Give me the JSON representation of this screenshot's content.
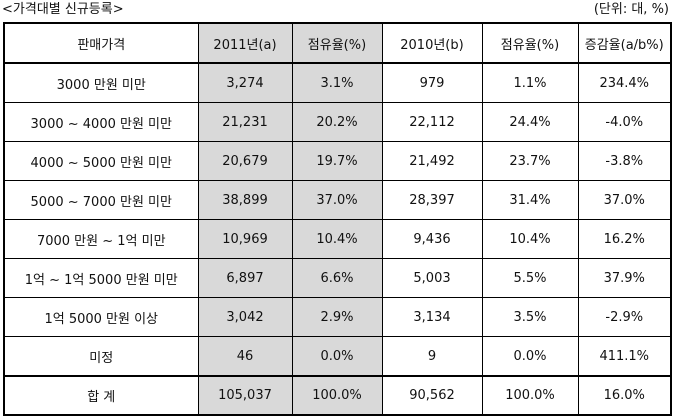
{
  "caption": {
    "title": "<가격대별 신규등록>",
    "unit": "(단위: 대, %)"
  },
  "table": {
    "columns": [
      "판매가격",
      "2011년(a)",
      "점유율(%)",
      "2010년(b)",
      "점유율(%)",
      "증감율(a/b%)"
    ],
    "rows": [
      [
        "3000 만원 미만",
        "3,274",
        "3.1%",
        "979",
        "1.1%",
        "234.4%"
      ],
      [
        "3000 ~ 4000 만원 미만",
        "21,231",
        "20.2%",
        "22,112",
        "24.4%",
        "-4.0%"
      ],
      [
        "4000 ~ 5000 만원 미만",
        "20,679",
        "19.7%",
        "21,492",
        "23.7%",
        "-3.8%"
      ],
      [
        "5000 ~ 7000 만원 미만",
        "38,899",
        "37.0%",
        "28,397",
        "31.4%",
        "37.0%"
      ],
      [
        "7000 만원 ~ 1억 미만",
        "10,969",
        "10.4%",
        "9,436",
        "10.4%",
        "16.2%"
      ],
      [
        "1억 ~ 1억 5000 만원 미만",
        "6,897",
        "6.6%",
        "5,003",
        "5.5%",
        "37.9%"
      ],
      [
        "1억 5000 만원 이상",
        "3,042",
        "2.9%",
        "3,134",
        "3.5%",
        "-2.9%"
      ],
      [
        "미정",
        "46",
        "0.0%",
        "9",
        "0.0%",
        "411.1%"
      ]
    ],
    "total": [
      "합 계",
      "105,037",
      "100.0%",
      "90,562",
      "100.0%",
      "16.0%"
    ],
    "shaded_color": "#d9d9d9"
  }
}
